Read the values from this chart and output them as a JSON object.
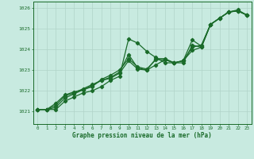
{
  "title": "Graphe pression niveau de la mer (hPa)",
  "bg_color": "#c8eae0",
  "grid_color": "#b0d4c8",
  "line_color": "#1a6b2a",
  "xlim": [
    -0.5,
    23.5
  ],
  "ylim": [
    1020.4,
    1026.3
  ],
  "xticks": [
    0,
    1,
    2,
    3,
    4,
    5,
    6,
    7,
    8,
    9,
    10,
    11,
    12,
    13,
    14,
    15,
    16,
    17,
    18,
    19,
    20,
    21,
    22,
    23
  ],
  "yticks": [
    1021,
    1022,
    1023,
    1024,
    1025,
    1026
  ],
  "line1_x": [
    0,
    1,
    2,
    3,
    4,
    5,
    6,
    7,
    8,
    9,
    10,
    11,
    12,
    13,
    14,
    15,
    16,
    17,
    18,
    19,
    20,
    21,
    22,
    23
  ],
  "line1_y": [
    1021.1,
    1021.1,
    1021.1,
    1021.5,
    1021.7,
    1021.9,
    1022.0,
    1022.2,
    1022.5,
    1022.7,
    1024.5,
    1024.3,
    1023.9,
    1023.6,
    1023.35,
    1023.35,
    1023.35,
    1024.2,
    1024.1,
    1025.2,
    1025.5,
    1025.8,
    1025.85,
    1025.65
  ],
  "line2_x": [
    0,
    1,
    2,
    3,
    4,
    5,
    6,
    7,
    8,
    9,
    10,
    11,
    12,
    13,
    14,
    15,
    16,
    17,
    18,
    19,
    20,
    21,
    22,
    23
  ],
  "line2_y": [
    1021.1,
    1021.1,
    1021.2,
    1021.65,
    1021.85,
    1022.05,
    1022.2,
    1022.55,
    1022.75,
    1023.0,
    1023.55,
    1023.15,
    1023.05,
    1023.5,
    1023.5,
    1023.35,
    1023.45,
    1023.95,
    1024.1,
    1025.2,
    1025.5,
    1025.8,
    1025.85,
    1025.65
  ],
  "line3_x": [
    0,
    1,
    2,
    3,
    4,
    5,
    6,
    7,
    8,
    9,
    10,
    11,
    12,
    13,
    14,
    15,
    16,
    17,
    18,
    19,
    20,
    21,
    22,
    23
  ],
  "line3_y": [
    1021.1,
    1021.1,
    1021.3,
    1021.75,
    1021.9,
    1022.1,
    1022.3,
    1022.5,
    1022.65,
    1022.9,
    1023.75,
    1023.1,
    1023.0,
    1023.25,
    1023.5,
    1023.35,
    1023.45,
    1024.45,
    1024.15,
    1025.2,
    1025.5,
    1025.8,
    1025.85,
    1025.65
  ],
  "line4_x": [
    0,
    1,
    2,
    3,
    4,
    5,
    6,
    7,
    8,
    9,
    10,
    11,
    12,
    13,
    14,
    15,
    16,
    17,
    18,
    19,
    20,
    21,
    22,
    23
  ],
  "line4_y": [
    1021.1,
    1021.1,
    1021.4,
    1021.8,
    1021.95,
    1022.05,
    1022.25,
    1022.5,
    1022.6,
    1022.85,
    1023.45,
    1023.05,
    1023.0,
    1023.55,
    1023.55,
    1023.35,
    1023.45,
    1024.1,
    1024.2,
    1025.2,
    1025.5,
    1025.8,
    1025.9,
    1025.65
  ]
}
